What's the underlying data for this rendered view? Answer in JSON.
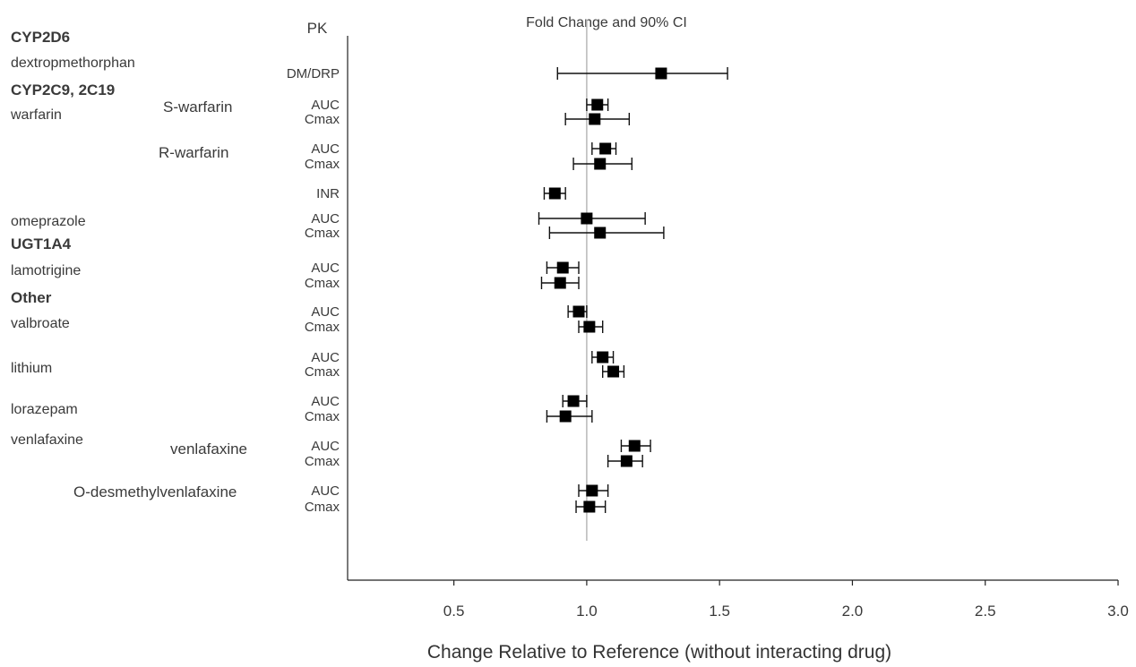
{
  "chart_data": {
    "type": "forest",
    "title": "Fold Change and 90% CI",
    "column_header": "PK",
    "xlabel": "Change Relative to Reference (without interacting drug)",
    "xlim": [
      0.1,
      3.0
    ],
    "xticks": [
      0.5,
      1.0,
      1.5,
      2.0,
      2.5,
      3.0
    ],
    "xtick_labels": [
      "0.5",
      "1.0",
      "1.5",
      "2.0",
      "2.5",
      "3.0"
    ],
    "reference_line": 1.0,
    "rows": [
      {
        "label": "DM/DRP",
        "est": 1.28,
        "lo": 0.89,
        "hi": 1.53
      },
      {
        "label": "AUC",
        "est": 1.04,
        "lo": 1.0,
        "hi": 1.08
      },
      {
        "label": "Cmax",
        "est": 1.03,
        "lo": 0.92,
        "hi": 1.16
      },
      {
        "label": "AUC",
        "est": 1.07,
        "lo": 1.02,
        "hi": 1.11
      },
      {
        "label": "Cmax",
        "est": 1.05,
        "lo": 0.95,
        "hi": 1.17
      },
      {
        "label": "INR",
        "est": 0.88,
        "lo": 0.84,
        "hi": 0.92
      },
      {
        "label": "AUC",
        "est": 1.0,
        "lo": 0.82,
        "hi": 1.22
      },
      {
        "label": "Cmax",
        "est": 1.05,
        "lo": 0.86,
        "hi": 1.29
      },
      {
        "label": "AUC",
        "est": 0.91,
        "lo": 0.85,
        "hi": 0.97
      },
      {
        "label": "Cmax",
        "est": 0.9,
        "lo": 0.83,
        "hi": 0.97
      },
      {
        "label": "AUC",
        "est": 0.97,
        "lo": 0.93,
        "hi": 1.0
      },
      {
        "label": "Cmax",
        "est": 1.01,
        "lo": 0.97,
        "hi": 1.06
      },
      {
        "label": "AUC",
        "est": 1.06,
        "lo": 1.02,
        "hi": 1.1
      },
      {
        "label": "Cmax",
        "est": 1.1,
        "lo": 1.06,
        "hi": 1.14
      },
      {
        "label": "AUC",
        "est": 0.95,
        "lo": 0.91,
        "hi": 1.0
      },
      {
        "label": "Cmax",
        "est": 0.92,
        "lo": 0.85,
        "hi": 1.02
      },
      {
        "label": "AUC",
        "est": 1.18,
        "lo": 1.13,
        "hi": 1.24
      },
      {
        "label": "Cmax",
        "est": 1.15,
        "lo": 1.08,
        "hi": 1.21
      },
      {
        "label": "AUC",
        "est": 1.02,
        "lo": 0.97,
        "hi": 1.08
      },
      {
        "label": "Cmax",
        "est": 1.01,
        "lo": 0.96,
        "hi": 1.07
      }
    ],
    "group_labels": [
      "CYP2D6",
      "CYP2C9, 2C19",
      "UGT1A4",
      "Other"
    ],
    "drug_labels": [
      "dextropmethorphan",
      "warfarin",
      "omeprazole",
      "lamotrigine",
      "valbroate",
      "lithium",
      "lorazepam",
      "venlafaxine"
    ],
    "analyte_labels": [
      "S-warfarin",
      "R-warfarin",
      "venlafaxine",
      "O-desmethylvenlafaxine"
    ]
  }
}
